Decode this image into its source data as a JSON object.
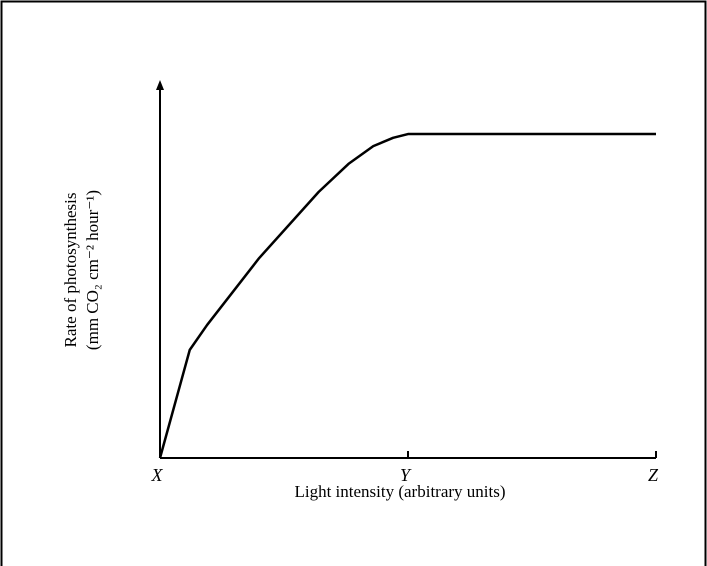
{
  "chart_data": {
    "type": "line",
    "x_label": "Light intensity (arbitrary units)",
    "y_label": [
      "Rate of photosynthesis",
      "(mm CO₂ cm⁻² hour⁻¹)"
    ],
    "xlim": [
      0,
      100
    ],
    "ylim": [
      0,
      100
    ],
    "xticks": [
      {
        "value": 0,
        "label": "X"
      },
      {
        "value": 50,
        "label": "Y"
      },
      {
        "value": 100,
        "label": "Z"
      }
    ],
    "x": [
      0,
      6,
      9.5,
      20,
      32,
      38,
      43,
      47,
      50,
      100
    ],
    "series": [
      {
        "color": "#000000",
        "values": [
          0,
          28.6,
          35.2,
          52.9,
          70.4,
          77.8,
          82.5,
          84.7,
          85.7,
          85.7
        ]
      }
    ]
  }
}
